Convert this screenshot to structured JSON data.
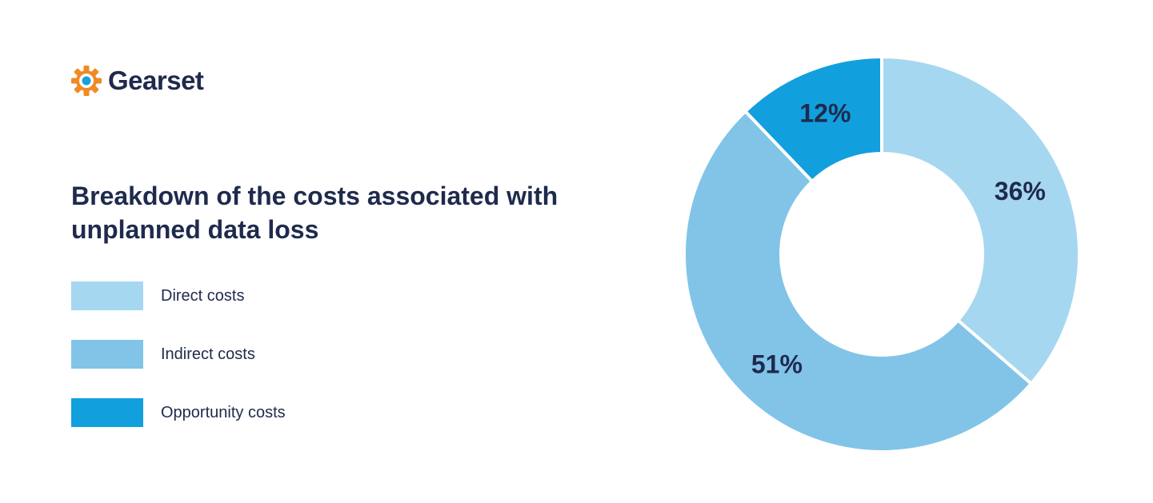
{
  "brand": {
    "name": "Gearset",
    "colors": {
      "gear_orange": "#f08a24",
      "gear_center": "#1aa0dc",
      "text_navy": "#1f2a4d"
    }
  },
  "chart_data": {
    "type": "pie",
    "variant": "donut",
    "title": "Breakdown of the costs associated with unplanned data loss",
    "legend_position": "left",
    "series": [
      {
        "name": "Direct costs",
        "value": 36,
        "label": "36%",
        "color": "#a6d7f0"
      },
      {
        "name": "Indirect costs",
        "value": 51,
        "label": "51%",
        "color": "#81c4e8"
      },
      {
        "name": "Opportunity costs",
        "value": 12,
        "label": "12%",
        "color": "#129fdd"
      }
    ]
  }
}
